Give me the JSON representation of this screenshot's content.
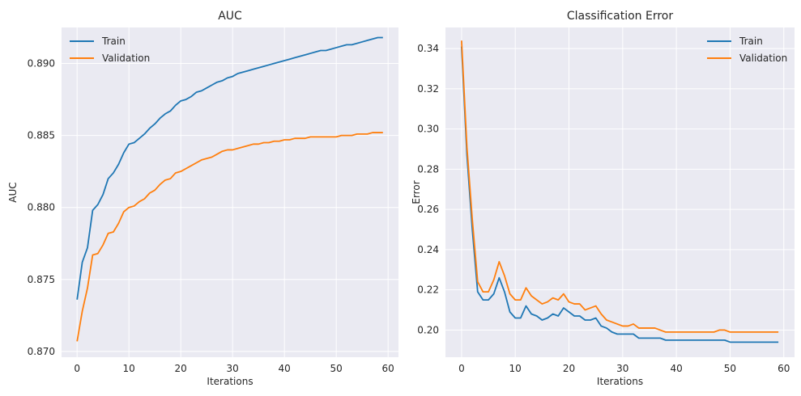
{
  "chart_data": [
    {
      "type": "line",
      "title": "AUC",
      "xlabel": "Iterations",
      "ylabel": "AUC",
      "xlim": [
        -3,
        62
      ],
      "ylim": [
        0.8696,
        0.8925
      ],
      "xticks": [
        0,
        10,
        20,
        30,
        40,
        50,
        60
      ],
      "yticks": [
        0.87,
        0.875,
        0.88,
        0.885,
        0.89
      ],
      "ytick_labels": [
        "0.870",
        "0.875",
        "0.880",
        "0.885",
        "0.890"
      ],
      "grid": true,
      "legend_position": "upper-left",
      "x": [
        0,
        1,
        2,
        3,
        4,
        5,
        6,
        7,
        8,
        9,
        10,
        11,
        12,
        13,
        14,
        15,
        16,
        17,
        18,
        19,
        20,
        21,
        22,
        23,
        24,
        25,
        26,
        27,
        28,
        29,
        30,
        31,
        32,
        33,
        34,
        35,
        36,
        37,
        38,
        39,
        40,
        41,
        42,
        43,
        44,
        45,
        46,
        47,
        48,
        49,
        50,
        51,
        52,
        53,
        54,
        55,
        56,
        57,
        58,
        59
      ],
      "series": [
        {
          "name": "Train",
          "color": "#1f77b4",
          "values": [
            0.8736,
            0.8762,
            0.8772,
            0.8798,
            0.8802,
            0.8809,
            0.882,
            0.8824,
            0.883,
            0.8838,
            0.8844,
            0.8845,
            0.8848,
            0.8851,
            0.8855,
            0.8858,
            0.8862,
            0.8865,
            0.8867,
            0.8871,
            0.8874,
            0.8875,
            0.8877,
            0.888,
            0.8881,
            0.8883,
            0.8885,
            0.8887,
            0.8888,
            0.889,
            0.8891,
            0.8893,
            0.8894,
            0.8895,
            0.8896,
            0.8897,
            0.8898,
            0.8899,
            0.89,
            0.8901,
            0.8902,
            0.8903,
            0.8904,
            0.8905,
            0.8906,
            0.8907,
            0.8908,
            0.8909,
            0.8909,
            0.891,
            0.8911,
            0.8912,
            0.8913,
            0.8913,
            0.8914,
            0.8915,
            0.8916,
            0.8917,
            0.8918,
            0.8918
          ]
        },
        {
          "name": "Validation",
          "color": "#ff7f0e",
          "values": [
            0.8707,
            0.8728,
            0.8744,
            0.8767,
            0.8768,
            0.8774,
            0.8782,
            0.8783,
            0.8789,
            0.8797,
            0.88,
            0.8801,
            0.8804,
            0.8806,
            0.881,
            0.8812,
            0.8816,
            0.8819,
            0.882,
            0.8824,
            0.8825,
            0.8827,
            0.8829,
            0.8831,
            0.8833,
            0.8834,
            0.8835,
            0.8837,
            0.8839,
            0.884,
            0.884,
            0.8841,
            0.8842,
            0.8843,
            0.8844,
            0.8844,
            0.8845,
            0.8845,
            0.8846,
            0.8846,
            0.8847,
            0.8847,
            0.8848,
            0.8848,
            0.8848,
            0.8849,
            0.8849,
            0.8849,
            0.8849,
            0.8849,
            0.8849,
            0.885,
            0.885,
            0.885,
            0.8851,
            0.8851,
            0.8851,
            0.8852,
            0.8852,
            0.8852
          ]
        }
      ]
    },
    {
      "type": "line",
      "title": "Classification Error",
      "xlabel": "Iterations",
      "ylabel": "Error",
      "xlim": [
        -3,
        62
      ],
      "ylim": [
        0.1865,
        0.3505
      ],
      "xticks": [
        0,
        10,
        20,
        30,
        40,
        50,
        60
      ],
      "yticks": [
        0.2,
        0.22,
        0.24,
        0.26,
        0.28,
        0.3,
        0.32,
        0.34
      ],
      "ytick_labels": [
        "0.20",
        "0.22",
        "0.24",
        "0.26",
        "0.28",
        "0.30",
        "0.32",
        "0.34"
      ],
      "grid": true,
      "legend_position": "upper-right",
      "x": [
        0,
        1,
        2,
        3,
        4,
        5,
        6,
        7,
        8,
        9,
        10,
        11,
        12,
        13,
        14,
        15,
        16,
        17,
        18,
        19,
        20,
        21,
        22,
        23,
        24,
        25,
        26,
        27,
        28,
        29,
        30,
        31,
        32,
        33,
        34,
        35,
        36,
        37,
        38,
        39,
        40,
        41,
        42,
        43,
        44,
        45,
        46,
        47,
        48,
        49,
        50,
        51,
        52,
        53,
        54,
        55,
        56,
        57,
        58,
        59
      ],
      "series": [
        {
          "name": "Train",
          "color": "#1f77b4",
          "values": [
            0.341,
            0.287,
            0.25,
            0.219,
            0.215,
            0.215,
            0.218,
            0.226,
            0.219,
            0.209,
            0.206,
            0.206,
            0.212,
            0.208,
            0.207,
            0.205,
            0.206,
            0.208,
            0.207,
            0.211,
            0.209,
            0.207,
            0.207,
            0.205,
            0.205,
            0.206,
            0.202,
            0.201,
            0.199,
            0.198,
            0.198,
            0.198,
            0.198,
            0.196,
            0.196,
            0.196,
            0.196,
            0.196,
            0.195,
            0.195,
            0.195,
            0.195,
            0.195,
            0.195,
            0.195,
            0.195,
            0.195,
            0.195,
            0.195,
            0.195,
            0.194,
            0.194,
            0.194,
            0.194,
            0.194,
            0.194,
            0.194,
            0.194,
            0.194,
            0.194
          ]
        },
        {
          "name": "Validation",
          "color": "#ff7f0e",
          "values": [
            0.344,
            0.291,
            0.255,
            0.224,
            0.219,
            0.219,
            0.225,
            0.234,
            0.227,
            0.218,
            0.215,
            0.215,
            0.221,
            0.217,
            0.215,
            0.213,
            0.214,
            0.216,
            0.215,
            0.218,
            0.214,
            0.213,
            0.213,
            0.21,
            0.211,
            0.212,
            0.208,
            0.205,
            0.204,
            0.203,
            0.202,
            0.202,
            0.203,
            0.201,
            0.201,
            0.201,
            0.201,
            0.2,
            0.199,
            0.199,
            0.199,
            0.199,
            0.199,
            0.199,
            0.199,
            0.199,
            0.199,
            0.199,
            0.2,
            0.2,
            0.199,
            0.199,
            0.199,
            0.199,
            0.199,
            0.199,
            0.199,
            0.199,
            0.199,
            0.199
          ]
        }
      ]
    }
  ]
}
